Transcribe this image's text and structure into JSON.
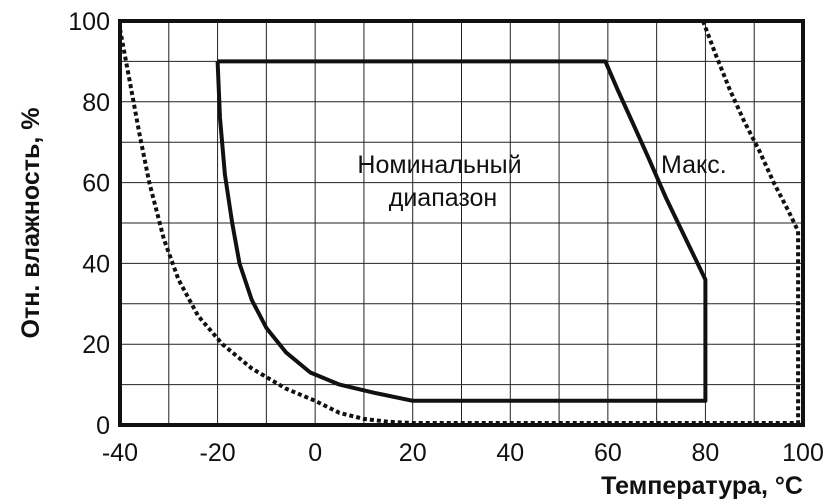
{
  "chart_data": {
    "type": "line",
    "title": "",
    "xlabel": "Температура, °C",
    "ylabel": "Отн. влажность, %",
    "xlim": [
      -40,
      100
    ],
    "ylim": [
      0,
      100
    ],
    "x_ticks": [
      "-40",
      "-20",
      "0",
      "20",
      "40",
      "60",
      "80",
      "100"
    ],
    "y_ticks": [
      "0",
      "20",
      "40",
      "60",
      "80",
      "100"
    ],
    "grid": true,
    "minor_grid_step": {
      "x": 10,
      "y": 10
    },
    "annotations": [
      {
        "lines": [
          "Номинальный",
          "диапазон"
        ]
      },
      {
        "lines": [
          "Макс."
        ]
      }
    ],
    "series": [
      {
        "style": "solid",
        "color": "#111111",
        "points": [
          [
            -20,
            90
          ],
          [
            59.5,
            90
          ],
          [
            62,
            83
          ],
          [
            65,
            75
          ],
          [
            68,
            67
          ],
          [
            72,
            56
          ],
          [
            76,
            46
          ],
          [
            80,
            36
          ],
          [
            80,
            6
          ],
          [
            20,
            6
          ],
          [
            12,
            8
          ],
          [
            5,
            10
          ],
          [
            -1,
            13
          ],
          [
            -6,
            18
          ],
          [
            -10,
            24
          ],
          [
            -13,
            31
          ],
          [
            -15.5,
            40
          ],
          [
            -17,
            50
          ],
          [
            -18.5,
            62
          ],
          [
            -19.5,
            76
          ],
          [
            -20,
            90
          ]
        ]
      },
      {
        "style": "dotted",
        "color": "#111111",
        "points": [
          [
            -40,
            98
          ],
          [
            -38,
            85
          ],
          [
            -36,
            72
          ],
          [
            -34,
            60
          ],
          [
            -31,
            46
          ],
          [
            -28,
            36
          ],
          [
            -24,
            27
          ],
          [
            -19,
            20
          ],
          [
            -13,
            14
          ],
          [
            -6,
            9
          ],
          [
            0,
            6
          ],
          [
            5,
            3
          ],
          [
            10,
            1.5
          ],
          [
            15,
            0.8
          ],
          [
            20,
            0.5
          ],
          [
            99,
            0.5
          ]
        ]
      },
      {
        "style": "dotted",
        "color": "#111111",
        "points": [
          [
            79.5,
            100
          ],
          [
            82,
            92
          ],
          [
            85,
            83
          ],
          [
            88,
            75
          ],
          [
            91,
            68
          ],
          [
            94,
            60
          ],
          [
            97,
            53
          ],
          [
            99,
            48
          ],
          [
            99,
            0.5
          ]
        ]
      }
    ]
  }
}
